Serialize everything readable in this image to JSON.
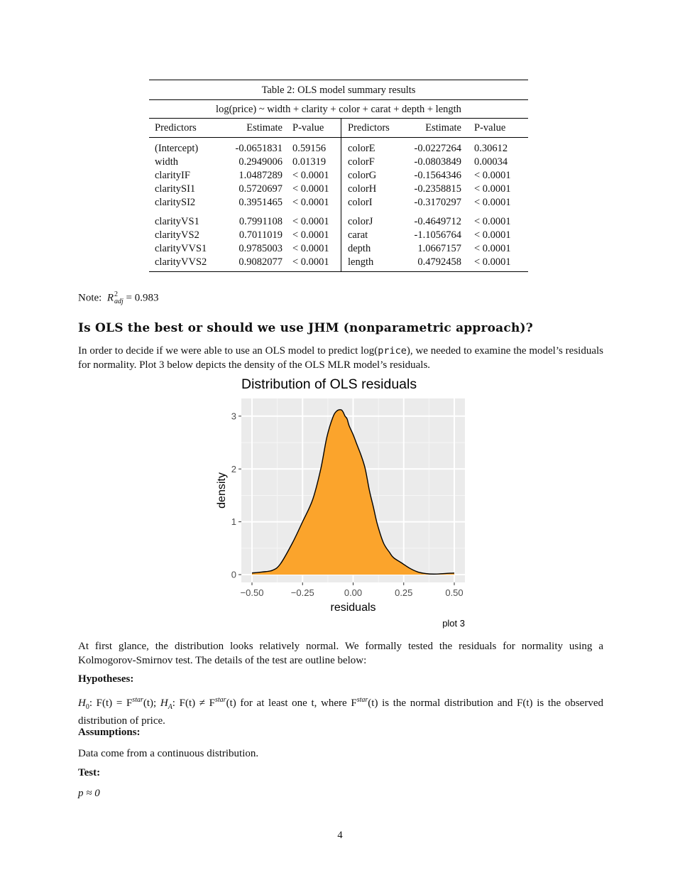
{
  "table": {
    "caption": "Table 2: OLS model summary results",
    "formula": "log(price) ~ width + clarity + color + carat + depth + length",
    "headers": [
      "Predictors",
      "Estimate",
      "P-value",
      "Predictors",
      "Estimate",
      "P-value"
    ],
    "groups": [
      [
        [
          "(Intercept)",
          "-0.0651831",
          "0.59156",
          "colorE",
          "-0.0227264",
          "0.30612"
        ],
        [
          "width",
          "0.2949006",
          "0.01319",
          "colorF",
          "-0.0803849",
          "0.00034"
        ],
        [
          "clarityIF",
          "1.0487289",
          "< 0.0001",
          "colorG",
          "-0.1564346",
          "< 0.0001"
        ],
        [
          "claritySI1",
          "0.5720697",
          "< 0.0001",
          "colorH",
          "-0.2358815",
          "< 0.0001"
        ],
        [
          "claritySI2",
          "0.3951465",
          "< 0.0001",
          "colorI",
          "-0.3170297",
          "< 0.0001"
        ]
      ],
      [
        [
          "clarityVS1",
          "0.7991108",
          "< 0.0001",
          "colorJ",
          "-0.4649712",
          "< 0.0001"
        ],
        [
          "clarityVS2",
          "0.7011019",
          "< 0.0001",
          "carat",
          "-1.1056764",
          "< 0.0001"
        ],
        [
          "clarityVVS1",
          "0.9785003",
          "< 0.0001",
          "depth",
          "1.0667157",
          "< 0.0001"
        ],
        [
          "clarityVVS2",
          "0.9082077",
          "< 0.0001",
          "length",
          "0.4792458",
          "< 0.0001"
        ]
      ]
    ]
  },
  "note": {
    "label": "Note:",
    "symbol": "R",
    "sup": "2",
    "sub": "adj",
    "value": "= 0.983"
  },
  "section_title": "Is OLS the best or should we use JHM (nonparametric approach)?",
  "intro": {
    "part1": "In order to decide if we were able to use an OLS model to predict log(",
    "code": "price",
    "part2": "), we needed to examine the model’s residuals for normality. Plot 3 below depicts the density of the OLS MLR model’s residuals."
  },
  "chart_data": {
    "type": "area",
    "title": "Distribution of OLS residuals",
    "xlabel": "residuals",
    "ylabel": "density",
    "caption": "plot 3",
    "xlim": [
      -0.5,
      0.5
    ],
    "ylim": [
      0,
      3.2
    ],
    "xticks": [
      -0.5,
      -0.25,
      0.0,
      0.25,
      0.5
    ],
    "xtick_labels": [
      "−0.50",
      "−0.25",
      "0.00",
      "0.25",
      "0.50"
    ],
    "yticks": [
      0,
      1,
      2,
      3
    ],
    "ytick_labels": [
      "0",
      "1",
      "2",
      "3"
    ],
    "fill_color": "#fba42c",
    "panel_color": "#ebebeb",
    "x": [
      -0.5,
      -0.45,
      -0.4,
      -0.36,
      -0.3,
      -0.25,
      -0.2,
      -0.16,
      -0.13,
      -0.1,
      -0.08,
      -0.06,
      -0.05,
      -0.04,
      -0.03,
      -0.02,
      0.0,
      0.02,
      0.04,
      0.06,
      0.08,
      0.1,
      0.12,
      0.15,
      0.18,
      0.2,
      0.24,
      0.28,
      0.32,
      0.36,
      0.4,
      0.45,
      0.5
    ],
    "y": [
      0.03,
      0.05,
      0.08,
      0.2,
      0.6,
      1.0,
      1.42,
      2.0,
      2.6,
      2.98,
      3.1,
      3.12,
      3.08,
      3.0,
      2.95,
      2.82,
      2.65,
      2.45,
      2.25,
      2.0,
      1.6,
      1.28,
      0.95,
      0.6,
      0.42,
      0.32,
      0.22,
      0.12,
      0.05,
      0.02,
      0.01,
      0.02,
      0.03
    ]
  },
  "paragraph2": "At first glance, the distribution looks relatively normal. We formally tested the residuals for normality using a Kolmogorov-Smirnov test. The details of the test are outline below:",
  "hypotheses_heading": "Hypotheses:",
  "hypotheses": {
    "h0": "H",
    "h0_sub": "0",
    "h0_text": ": F(t) = F",
    "star": "star",
    "t1": "(t); ",
    "ha": "H",
    "ha_sub": "A",
    "ha_text": ": F(t) ≠ F",
    "t2": "(t) for at least one t, where F",
    "t3": "(t) is the normal distribution and F(t) is the observed distribution of price."
  },
  "assumptions_heading": "Assumptions:",
  "assumptions_text": "Data come from a continuous distribution.",
  "test_heading": "Test:",
  "test_text": "p ≈ 0",
  "page_number": "4"
}
